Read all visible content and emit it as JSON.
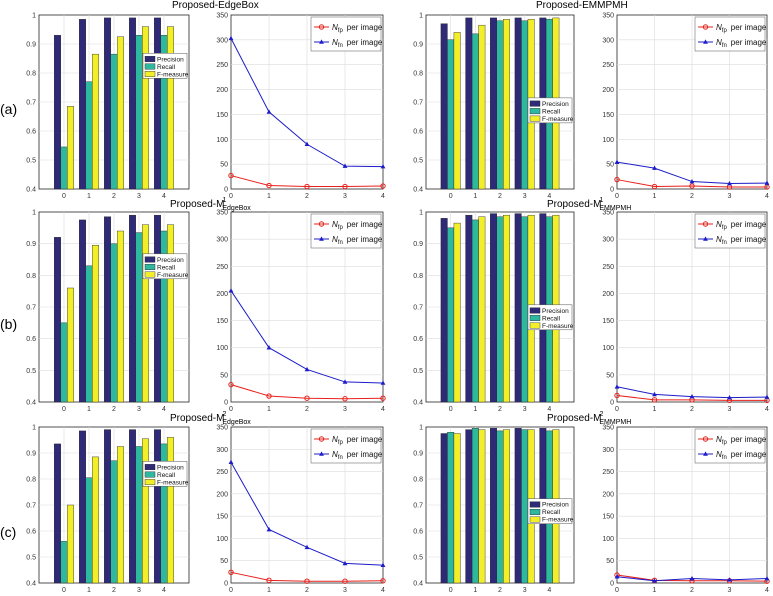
{
  "figure": {
    "row_labels": [
      "(a)",
      "(b)",
      "(c)"
    ],
    "titles": {
      "a_left": "Proposed-EdgeBox",
      "a_right": "Proposed-EMMPMH",
      "b_left": "Proposed-M",
      "b_left_sub": "EdgeBox",
      "b_left_sup": "1",
      "b_right": "Proposed-M",
      "b_right_sub": "EMMPMH",
      "b_right_sup": "1",
      "c_left": "Proposed-M",
      "c_left_sub": "EdgeBox",
      "c_left_sup": "2",
      "c_right": "Proposed-M",
      "c_right_sub": "EMMPMH",
      "c_right_sup": "2"
    },
    "legend": {
      "bars": [
        "Precision",
        "Recall",
        "F-measure"
      ],
      "lines": [
        {
          "symbol": "N",
          "sub": "fp",
          "suffix": "per image"
        },
        {
          "symbol": "N",
          "sub": "fn",
          "suffix": "per image"
        }
      ]
    },
    "colors": {
      "precision": "#2e2a78",
      "recall": "#2fb8a0",
      "fmeasure": "#f2ef2a",
      "fp": "#e8201a",
      "fn": "#1c1cc8",
      "grid": "#dcdcdc"
    }
  },
  "chart_data": [
    {
      "panel": "a-left-bar",
      "type": "bar",
      "categories": [
        "0",
        "1",
        "2",
        "3",
        "4"
      ],
      "ylim": [
        0.4,
        1.0
      ],
      "yticks": [
        "0.4",
        "0.5",
        "0.6",
        "0.7",
        "0.8",
        "0.9",
        "1"
      ],
      "grid": true,
      "legend": "middle-right",
      "series": [
        {
          "name": "Precision",
          "values": [
            0.93,
            0.985,
            0.99,
            0.99,
            0.99
          ]
        },
        {
          "name": "Recall",
          "values": [
            0.545,
            0.77,
            0.865,
            0.93,
            0.93
          ]
        },
        {
          "name": "F-measure",
          "values": [
            0.685,
            0.865,
            0.925,
            0.96,
            0.96
          ]
        }
      ]
    },
    {
      "panel": "a-left-line",
      "type": "line",
      "x": [
        0,
        1,
        2,
        3,
        4
      ],
      "ylim": [
        0,
        350
      ],
      "yticks": [
        "0",
        "50",
        "100",
        "150",
        "200",
        "250",
        "300",
        "350"
      ],
      "grid": true,
      "legend": "top-right",
      "series": [
        {
          "name": "N_fp per image",
          "values": [
            27,
            7,
            5,
            5,
            6
          ]
        },
        {
          "name": "N_fn per image",
          "values": [
            303,
            155,
            90,
            46,
            45
          ]
        }
      ]
    },
    {
      "panel": "a-right-bar",
      "type": "bar",
      "categories": [
        "0",
        "1",
        "2",
        "3",
        "4"
      ],
      "ylim": [
        0.4,
        1.0
      ],
      "yticks": [
        "0.4",
        "0.5",
        "0.6",
        "0.7",
        "0.8",
        "0.9",
        "1"
      ],
      "grid": true,
      "legend": "lower-right",
      "series": [
        {
          "name": "Precision",
          "values": [
            0.97,
            0.99,
            0.99,
            0.99,
            0.99
          ]
        },
        {
          "name": "Recall",
          "values": [
            0.915,
            0.935,
            0.98,
            0.98,
            0.985
          ]
        },
        {
          "name": "F-measure",
          "values": [
            0.94,
            0.965,
            0.985,
            0.985,
            0.99
          ]
        }
      ]
    },
    {
      "panel": "a-right-line",
      "type": "line",
      "x": [
        0,
        1,
        2,
        3,
        4
      ],
      "ylim": [
        0,
        350
      ],
      "yticks": [
        "0",
        "50",
        "100",
        "150",
        "200",
        "250",
        "300",
        "350"
      ],
      "grid": true,
      "legend": "top-right",
      "series": [
        {
          "name": "N_fp per image",
          "values": [
            19,
            5,
            6,
            4,
            4
          ]
        },
        {
          "name": "N_fn per image",
          "values": [
            54,
            42,
            15,
            11,
            12
          ]
        }
      ]
    },
    {
      "panel": "b-left-bar",
      "type": "bar",
      "categories": [
        "0",
        "1",
        "2",
        "3",
        "4"
      ],
      "ylim": [
        0.4,
        1.0
      ],
      "yticks": [
        "0.4",
        "0.5",
        "0.6",
        "0.7",
        "0.8",
        "0.9",
        "1"
      ],
      "grid": true,
      "legend": "middle-right",
      "series": [
        {
          "name": "Precision",
          "values": [
            0.92,
            0.975,
            0.985,
            0.99,
            0.99
          ]
        },
        {
          "name": "Recall",
          "values": [
            0.65,
            0.83,
            0.9,
            0.935,
            0.94
          ]
        },
        {
          "name": "F-measure",
          "values": [
            0.76,
            0.895,
            0.94,
            0.96,
            0.96
          ]
        }
      ]
    },
    {
      "panel": "b-left-line",
      "type": "line",
      "x": [
        0,
        1,
        2,
        3,
        4
      ],
      "ylim": [
        0,
        350
      ],
      "yticks": [
        "0",
        "50",
        "100",
        "150",
        "200",
        "250",
        "300",
        "350"
      ],
      "grid": true,
      "legend": "top-right",
      "series": [
        {
          "name": "N_fp per image",
          "values": [
            32,
            11,
            7,
            6,
            7
          ]
        },
        {
          "name": "N_fn per image",
          "values": [
            205,
            100,
            60,
            37,
            35
          ]
        }
      ]
    },
    {
      "panel": "b-right-bar",
      "type": "bar",
      "categories": [
        "0",
        "1",
        "2",
        "3",
        "4"
      ],
      "ylim": [
        0.4,
        1.0
      ],
      "yticks": [
        "0.4",
        "0.5",
        "0.6",
        "0.7",
        "0.8",
        "0.9",
        "1"
      ],
      "grid": true,
      "legend": "lower-right",
      "series": [
        {
          "name": "Precision",
          "values": [
            0.98,
            0.99,
            0.995,
            0.995,
            0.995
          ]
        },
        {
          "name": "Recall",
          "values": [
            0.95,
            0.975,
            0.985,
            0.985,
            0.985
          ]
        },
        {
          "name": "F-measure",
          "values": [
            0.965,
            0.985,
            0.99,
            0.99,
            0.99
          ]
        }
      ]
    },
    {
      "panel": "b-right-line",
      "type": "line",
      "x": [
        0,
        1,
        2,
        3,
        4
      ],
      "ylim": [
        0,
        350
      ],
      "yticks": [
        "0",
        "50",
        "100",
        "150",
        "200",
        "250",
        "300",
        "350"
      ],
      "grid": true,
      "legend": "top-right",
      "series": [
        {
          "name": "N_fp per image",
          "values": [
            12,
            4,
            4,
            3,
            3
          ]
        },
        {
          "name": "N_fn per image",
          "values": [
            28,
            14,
            10,
            8,
            9
          ]
        }
      ]
    },
    {
      "panel": "c-left-bar",
      "type": "bar",
      "categories": [
        "0",
        "1",
        "2",
        "3",
        "4"
      ],
      "ylim": [
        0.4,
        1.0
      ],
      "yticks": [
        "0.4",
        "0.5",
        "0.6",
        "0.7",
        "0.8",
        "0.9",
        "1"
      ],
      "grid": true,
      "legend": "middle-right",
      "series": [
        {
          "name": "Precision",
          "values": [
            0.935,
            0.985,
            0.99,
            0.99,
            0.99
          ]
        },
        {
          "name": "Recall",
          "values": [
            0.56,
            0.805,
            0.87,
            0.925,
            0.935
          ]
        },
        {
          "name": "F-measure",
          "values": [
            0.7,
            0.885,
            0.925,
            0.955,
            0.96
          ]
        }
      ]
    },
    {
      "panel": "c-left-line",
      "type": "line",
      "x": [
        0,
        1,
        2,
        3,
        4
      ],
      "ylim": [
        0,
        350
      ],
      "yticks": [
        "0",
        "50",
        "100",
        "150",
        "200",
        "250",
        "300",
        "350"
      ],
      "grid": true,
      "legend": "top-right",
      "series": [
        {
          "name": "N_fp per image",
          "values": [
            24,
            6,
            4,
            4,
            5
          ]
        },
        {
          "name": "N_fn per image",
          "values": [
            271,
            120,
            80,
            44,
            40
          ]
        }
      ]
    },
    {
      "panel": "c-right-bar",
      "type": "bar",
      "categories": [
        "0",
        "1",
        "2",
        "3",
        "4"
      ],
      "ylim": [
        0.4,
        1.0
      ],
      "yticks": [
        "0.4",
        "0.5",
        "0.6",
        "0.7",
        "0.8",
        "0.9",
        "1"
      ],
      "grid": true,
      "legend": "lower-right",
      "series": [
        {
          "name": "Precision",
          "values": [
            0.975,
            0.99,
            0.995,
            0.995,
            0.995
          ]
        },
        {
          "name": "Recall",
          "values": [
            0.98,
            0.995,
            0.985,
            0.99,
            0.985
          ]
        },
        {
          "name": "F-measure",
          "values": [
            0.975,
            0.99,
            0.99,
            0.99,
            0.99
          ]
        }
      ]
    },
    {
      "panel": "c-right-line",
      "type": "line",
      "x": [
        0,
        1,
        2,
        3,
        4
      ],
      "ylim": [
        0,
        350
      ],
      "yticks": [
        "0",
        "50",
        "100",
        "150",
        "200",
        "250",
        "300",
        "350"
      ],
      "grid": true,
      "legend": "top-right",
      "series": [
        {
          "name": "N_fp per image",
          "values": [
            18,
            6,
            5,
            5,
            4
          ]
        },
        {
          "name": "N_fn per image",
          "values": [
            14,
            5,
            10,
            7,
            10
          ]
        }
      ]
    }
  ]
}
